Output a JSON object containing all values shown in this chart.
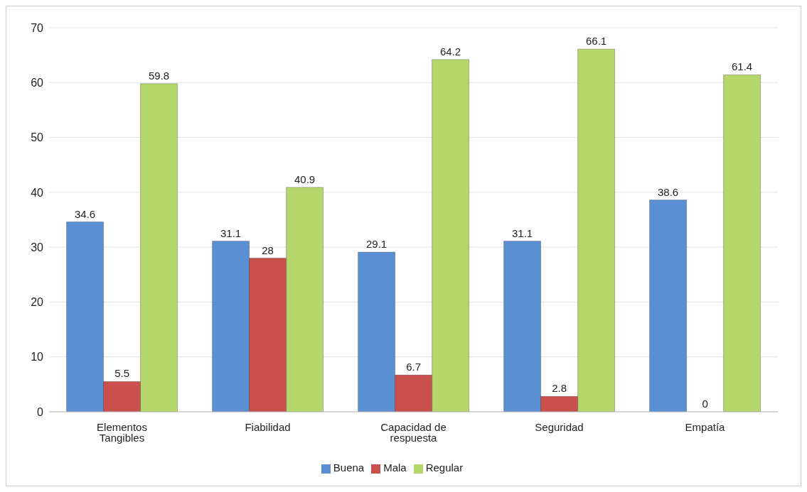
{
  "chart_data": {
    "type": "bar",
    "categories": [
      "Elementos Tangibles",
      "Fiabilidad",
      "Capacidad de respuesta",
      "Seguridad",
      "Empatía"
    ],
    "series": [
      {
        "name": "Buena",
        "color": "#5b8fd4",
        "values": [
          34.6,
          31.1,
          29.1,
          31.1,
          38.6
        ]
      },
      {
        "name": "Mala",
        "color": "#c9504d",
        "values": [
          5.5,
          28,
          6.7,
          2.8,
          0
        ]
      },
      {
        "name": "Regular",
        "color": "#b5d66a",
        "values": [
          59.8,
          40.9,
          64.2,
          66.1,
          61.4
        ]
      }
    ],
    "ylim": [
      0,
      70
    ],
    "yticks": [
      0,
      10,
      20,
      30,
      40,
      50,
      60,
      70
    ],
    "grid": "y",
    "legend": "bottom",
    "data_labels": true
  }
}
